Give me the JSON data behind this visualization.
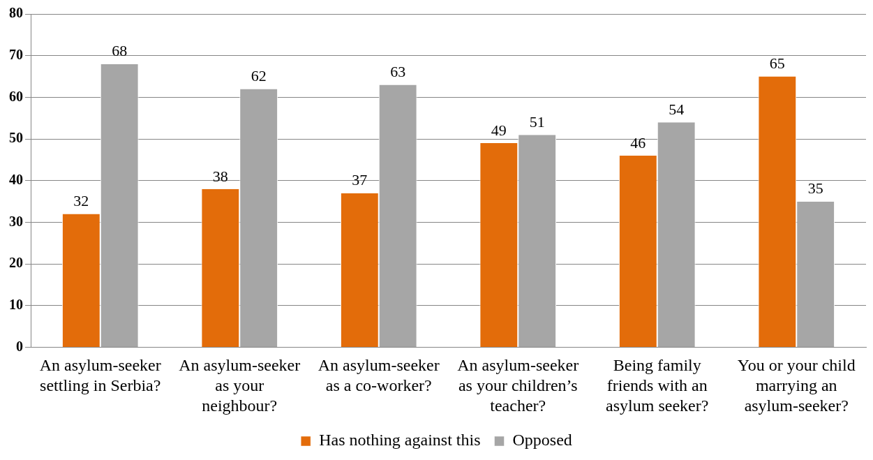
{
  "chart_data": {
    "type": "bar",
    "categories": [
      "An asylum-seeker settling in Serbia?",
      "An asylum-seeker as your neighbour?",
      "An asylum-seeker as a co-worker?",
      "An asylum-seeker as your children’s teacher?",
      "Being family friends with an asylum seeker?",
      "You or your child marrying an asylum-seeker?"
    ],
    "series": [
      {
        "name": "Has nothing against this",
        "color": "#e36c0a",
        "values": [
          32,
          38,
          37,
          49,
          46,
          65
        ]
      },
      {
        "name": "Opposed",
        "color": "#a6a6a6",
        "values": [
          68,
          62,
          63,
          51,
          54,
          35
        ]
      }
    ],
    "ylim": [
      0,
      80
    ],
    "yticks": [
      0,
      10,
      20,
      30,
      40,
      50,
      60,
      70,
      80
    ],
    "grid": "y",
    "legend": "bottom",
    "data_labels": true
  }
}
